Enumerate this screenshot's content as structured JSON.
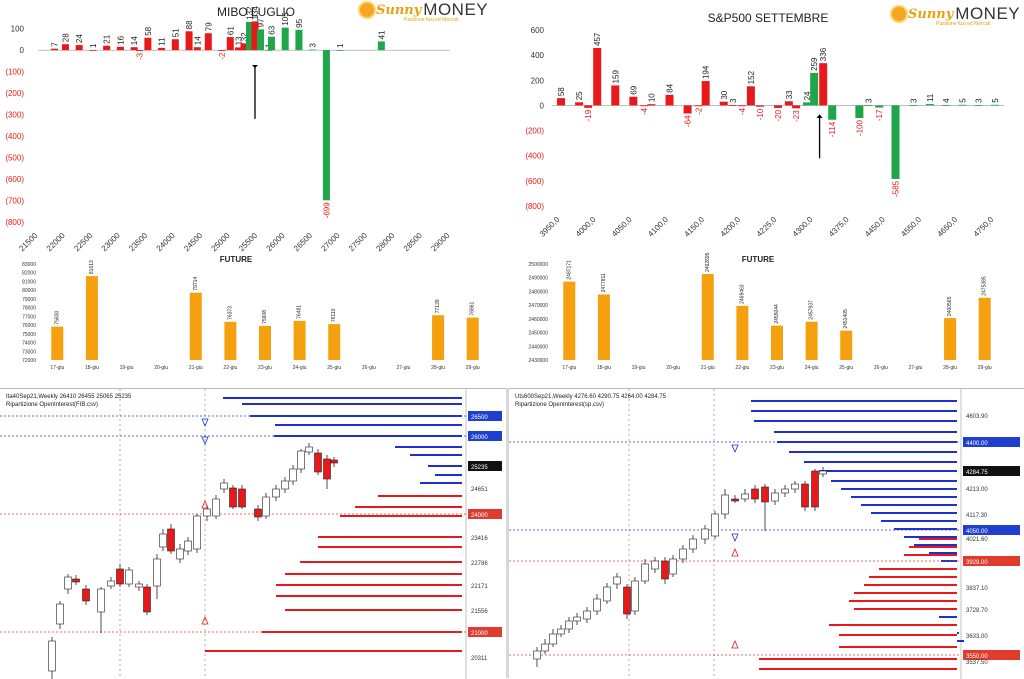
{
  "logo": {
    "sunny": "Sunny",
    "money": "MONEY",
    "tagline": "Passione fusi ed Mercati"
  },
  "chart_data": [
    {
      "type": "bar",
      "id": "mibo",
      "title": "MIBO LUGLIO",
      "strikes": [
        "21500",
        "22000",
        "22500",
        "23000",
        "23500",
        "24000",
        "24500",
        "25000",
        "25500",
        "26000",
        "26500",
        "27000",
        "27500",
        "28000",
        "28500",
        "29000"
      ],
      "ylim": [
        -800,
        150
      ],
      "yticks": [
        100,
        0,
        -100,
        -200,
        -300,
        -400,
        -500,
        -600,
        -700,
        -800
      ],
      "ytick_labels": [
        "100",
        "0",
        "(100)",
        "(200)",
        "(300)",
        "(400)",
        "(500)",
        "(600)",
        "(700)",
        "(800)"
      ],
      "bars": [
        {
          "x": 21800,
          "v": 7,
          "c": "red"
        },
        {
          "x": 22000,
          "v": 28,
          "c": "red"
        },
        {
          "x": 22250,
          "v": 24,
          "c": "red"
        },
        {
          "x": 22500,
          "v": 1,
          "c": "red"
        },
        {
          "x": 22750,
          "v": 21,
          "c": "red"
        },
        {
          "x": 23000,
          "v": 16,
          "c": "red"
        },
        {
          "x": 23250,
          "v": 14,
          "c": "red"
        },
        {
          "x": 23350,
          "v": -3,
          "c": "red"
        },
        {
          "x": 23500,
          "v": 58,
          "c": "red"
        },
        {
          "x": 23750,
          "v": 11,
          "c": "red"
        },
        {
          "x": 24000,
          "v": 51,
          "c": "red"
        },
        {
          "x": 24250,
          "v": 88,
          "c": "red"
        },
        {
          "x": 24400,
          "v": 14,
          "c": "red"
        },
        {
          "x": 24600,
          "v": 79,
          "c": "red"
        },
        {
          "x": 24850,
          "v": -2,
          "c": "red"
        },
        {
          "x": 25000,
          "v": 61,
          "c": "red"
        },
        {
          "x": 25150,
          "v": 13,
          "c": "red"
        },
        {
          "x": 25250,
          "v": 32,
          "c": "red"
        },
        {
          "x": 25350,
          "v": 132,
          "c": "green"
        },
        {
          "x": 25450,
          "v": 134,
          "c": "red"
        },
        {
          "x": 25550,
          "v": 97,
          "c": "green"
        },
        {
          "x": 25700,
          "v": 1,
          "c": "green"
        },
        {
          "x": 25750,
          "v": 63,
          "c": "green"
        },
        {
          "x": 26000,
          "v": 105,
          "c": "green"
        },
        {
          "x": 26250,
          "v": 95,
          "c": "green"
        },
        {
          "x": 26500,
          "v": 3,
          "c": "green"
        },
        {
          "x": 26750,
          "v": -699,
          "c": "green"
        },
        {
          "x": 27000,
          "v": 1,
          "c": "green"
        },
        {
          "x": 27750,
          "v": 41,
          "c": "green"
        }
      ],
      "arrow_at": 25450
    },
    {
      "type": "bar",
      "id": "sp500",
      "title": "S&P500 SETTEMBRE",
      "strikes": [
        "3950,0",
        "4000,0",
        "4050,0",
        "4100,0",
        "4150,0",
        "4200,0",
        "4225,0",
        "4300,0",
        "4375,0",
        "4450,0",
        "4550,0",
        "4650,0",
        "4750,0"
      ],
      "ylim": [
        -800,
        600
      ],
      "yticks": [
        600,
        400,
        200,
        0,
        -200,
        -400,
        -600,
        -800
      ],
      "ytick_labels": [
        "600",
        "400",
        "200",
        "0",
        "(200)",
        "(400)",
        "(600)",
        "(800)"
      ],
      "bars": [
        {
          "i": 0,
          "v": 58,
          "c": "red"
        },
        {
          "i": 1,
          "v": 25,
          "c": "red"
        },
        {
          "i": 1.5,
          "v": -19,
          "c": "red"
        },
        {
          "i": 2,
          "v": 457,
          "c": "red"
        },
        {
          "i": 3,
          "v": 159,
          "c": "red"
        },
        {
          "i": 4,
          "v": 69,
          "c": "red"
        },
        {
          "i": 4.6,
          "v": -4,
          "c": "red"
        },
        {
          "i": 5,
          "v": 10,
          "c": "red"
        },
        {
          "i": 6,
          "v": 84,
          "c": "red"
        },
        {
          "i": 7,
          "v": -64,
          "c": "red"
        },
        {
          "i": 7.6,
          "v": -2,
          "c": "red"
        },
        {
          "i": 8,
          "v": 194,
          "c": "red"
        },
        {
          "i": 9,
          "v": 30,
          "c": "red"
        },
        {
          "i": 9.5,
          "v": 3,
          "c": "red"
        },
        {
          "i": 10,
          "v": -4,
          "c": "red"
        },
        {
          "i": 10.5,
          "v": 152,
          "c": "red"
        },
        {
          "i": 11,
          "v": -10,
          "c": "red"
        },
        {
          "i": 12,
          "v": -20,
          "c": "red"
        },
        {
          "i": 12.6,
          "v": 33,
          "c": "red"
        },
        {
          "i": 13,
          "v": -23,
          "c": "red"
        },
        {
          "i": 13.6,
          "v": 24,
          "c": "green"
        },
        {
          "i": 14,
          "v": 259,
          "c": "green"
        },
        {
          "i": 14.5,
          "v": 336,
          "c": "red"
        },
        {
          "i": 15,
          "v": -114,
          "c": "green"
        },
        {
          "i": 16.5,
          "v": -100,
          "c": "green"
        },
        {
          "i": 17,
          "v": 3,
          "c": "green"
        },
        {
          "i": 17.6,
          "v": -17,
          "c": "green"
        },
        {
          "i": 18.5,
          "v": -585,
          "c": "green"
        },
        {
          "i": 19.5,
          "v": 3,
          "c": "green"
        },
        {
          "i": 20.4,
          "v": 11,
          "c": "green"
        },
        {
          "i": 21.3,
          "v": 4,
          "c": "green"
        },
        {
          "i": 22.2,
          "v": 5,
          "c": "green"
        },
        {
          "i": 23.1,
          "v": 3,
          "c": "green"
        },
        {
          "i": 24,
          "v": 5,
          "c": "green"
        }
      ],
      "arrow_at": 14.3
    },
    {
      "type": "bar",
      "id": "future-left",
      "title": "FUTURE",
      "categories": [
        "17-giu",
        "18-giu",
        "19-giu",
        "20-giu",
        "21-giu",
        "22-giu",
        "23-giu",
        "24-giu",
        "25-giu",
        "26-giu",
        "27-giu",
        "28-giu",
        "29-giu"
      ],
      "values": [
        75830,
        81613,
        null,
        null,
        79714,
        76373,
        75908,
        76481,
        76110,
        null,
        null,
        77128,
        76861
      ],
      "ylim": [
        72000,
        83000
      ],
      "yticks": [
        83000,
        82000,
        81000,
        80000,
        79000,
        78000,
        77000,
        76000,
        75000,
        74000,
        73000,
        72000
      ]
    },
    {
      "type": "bar",
      "id": "future-right",
      "title": "FUTURE",
      "categories": [
        "17-giu",
        "18-giu",
        "19-giu",
        "20-giu",
        "21-giu",
        "22-giu",
        "23-giu",
        "24-giu",
        "25-giu",
        "26-giu",
        "27-giu",
        "28-giu",
        "29-giu"
      ],
      "values": [
        2487171,
        2477811,
        null,
        null,
        2492695,
        2469463,
        2455044,
        2457937,
        2451405,
        null,
        null,
        2460565,
        2475385
      ],
      "ylim": [
        2430000,
        2500000
      ],
      "yticks": [
        2500000,
        2490000,
        2480000,
        2470000,
        2460000,
        2450000,
        2440000,
        2430000
      ]
    },
    {
      "type": "candlestick",
      "id": "oi-left",
      "header_line1": "Ita40Sep21,Weekly  26410 26455 25065 25235",
      "header_line2": "Ripartizione OpenInterest(FIB.csv)",
      "price_labels": [
        "26500",
        "26000",
        "25235",
        "24651",
        "24000",
        "23416",
        "22786",
        "22171",
        "21556",
        "21000",
        "20311"
      ],
      "highlight": {
        "26500": "#1f3fcf",
        "26000": "#1f3fcf",
        "25235": "#111111",
        "24000": "#e03b2f",
        "21000": "#e03b2f"
      }
    },
    {
      "type": "candlestick",
      "id": "oi-right",
      "header_line1": "Uts600Sep21,Weekly  4276.60 4290.75 4264.00 4284.75",
      "header_line2": "Ripartizione OpenInterest(sp.csv)",
      "price_labels": [
        "4603.90",
        "4400.00",
        "4284.75",
        "4213.00",
        "4117.30",
        "4050.00",
        "4021.60",
        "3929.00",
        "3837.10",
        "3728.70",
        "3633.00",
        "3550.00",
        "3537.50"
      ],
      "highlight": {
        "4400.00": "#1f3fcf",
        "4284.75": "#111111",
        "4050.00": "#1f3fcf",
        "3929.00": "#e03b2f",
        "3550.00": "#e03b2f"
      }
    }
  ],
  "colors": {
    "red": "#e8191a",
    "green": "#1fa64a",
    "orange": "#f5a00e",
    "blue": "#1f2fcf",
    "axis": "#888888"
  }
}
